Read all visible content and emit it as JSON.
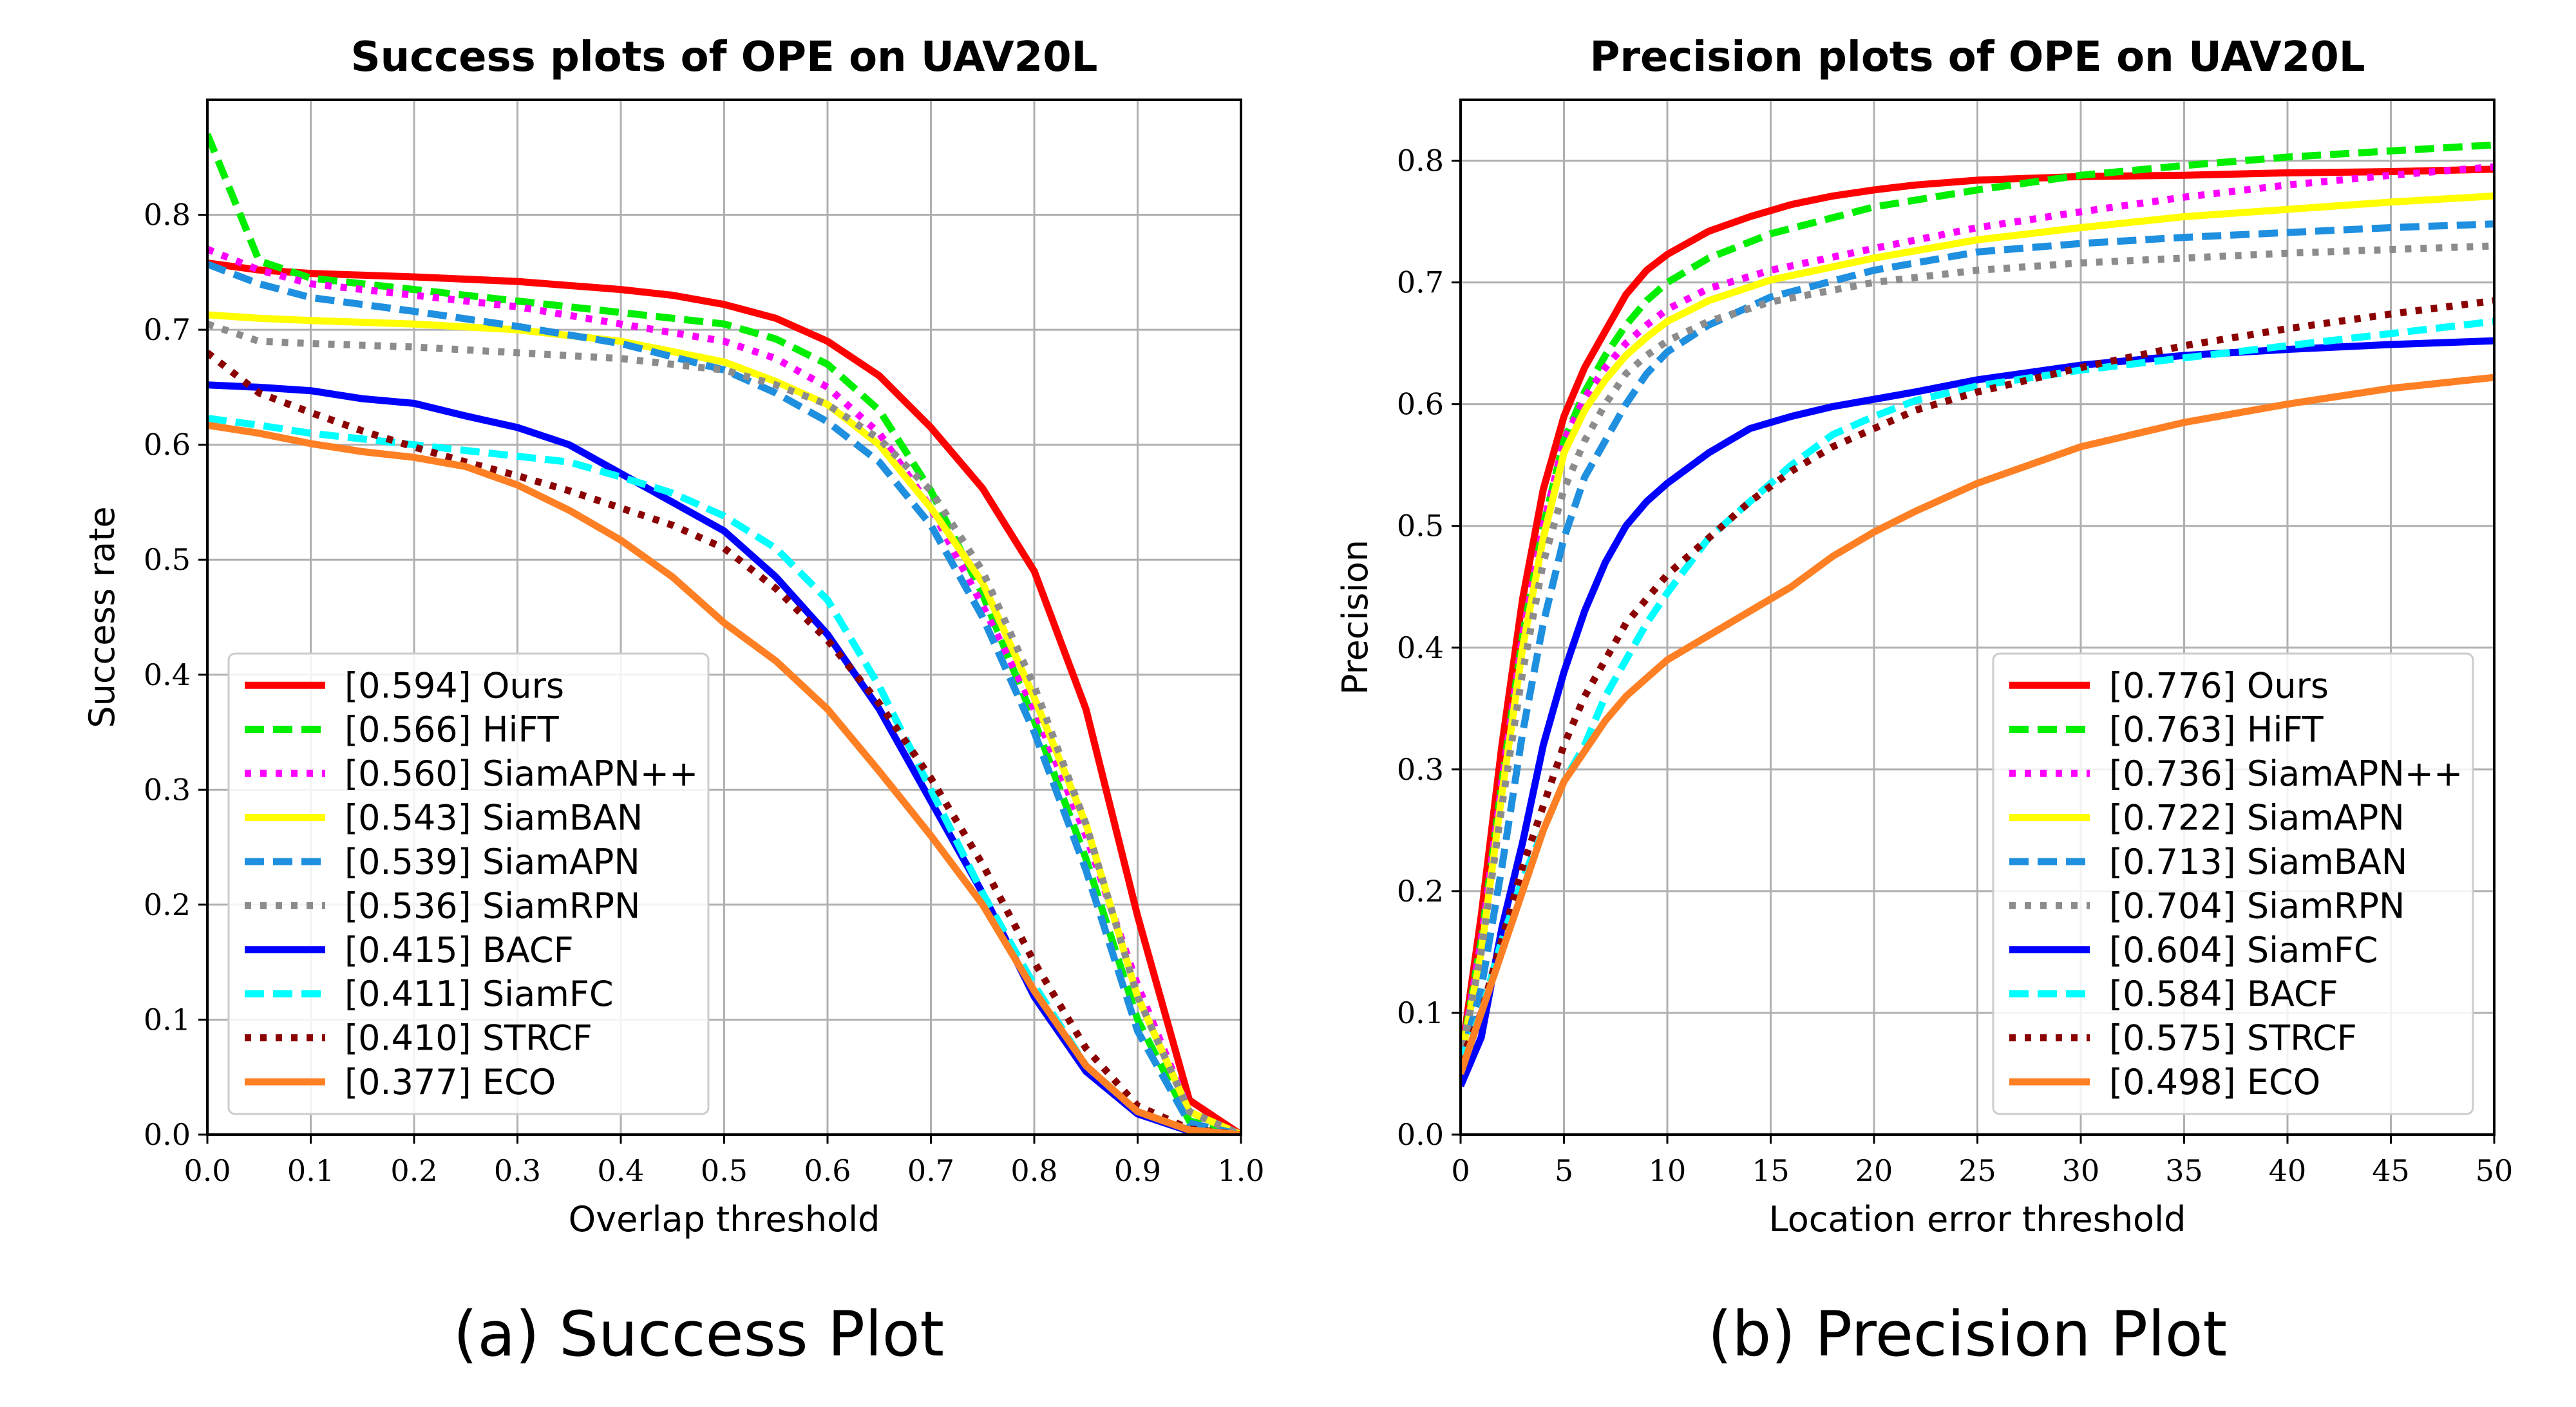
{
  "figure_captions": [
    "(a) Success Plot",
    "(b) Precision Plot"
  ],
  "chart_data": [
    {
      "type": "line",
      "title": "Success plots of OPE on UAV20L",
      "xlabel": "Overlap threshold",
      "ylabel": "Success rate",
      "xlim": [
        0,
        1
      ],
      "ylim": [
        0,
        0.9
      ],
      "xticks": [
        0.0,
        0.1,
        0.2,
        0.3,
        0.4,
        0.5,
        0.6,
        0.7,
        0.8,
        0.9,
        1.0
      ],
      "xtick_labels": [
        "0.0",
        "0.1",
        "0.2",
        "0.3",
        "0.4",
        "0.5",
        "0.6",
        "0.7",
        "0.8",
        "0.9",
        "1.0"
      ],
      "yticks": [
        0.0,
        0.1,
        0.2,
        0.3,
        0.4,
        0.5,
        0.6,
        0.7,
        0.8
      ],
      "ytick_labels": [
        "0.0",
        "0.1",
        "0.2",
        "0.3",
        "0.4",
        "0.5",
        "0.6",
        "0.7",
        "0.8"
      ],
      "grid": true,
      "legend_position": "lower-left",
      "series": [
        {
          "name": "[0.594] Ours",
          "color": "#ff0000",
          "dash": "solid",
          "x": [
            0,
            0.05,
            0.1,
            0.2,
            0.3,
            0.4,
            0.45,
            0.5,
            0.55,
            0.6,
            0.65,
            0.7,
            0.75,
            0.8,
            0.85,
            0.9,
            0.95,
            1.0
          ],
          "y": [
            0.758,
            0.752,
            0.749,
            0.746,
            0.742,
            0.735,
            0.73,
            0.722,
            0.71,
            0.69,
            0.66,
            0.615,
            0.562,
            0.49,
            0.37,
            0.19,
            0.03,
            0.0
          ]
        },
        {
          "name": "[0.566] HiFT",
          "color": "#00ee00",
          "dash": "dashed",
          "x": [
            0,
            0.05,
            0.1,
            0.2,
            0.3,
            0.4,
            0.5,
            0.55,
            0.6,
            0.65,
            0.7,
            0.75,
            0.8,
            0.85,
            0.9,
            0.95,
            1.0
          ],
          "y": [
            0.87,
            0.76,
            0.745,
            0.735,
            0.725,
            0.715,
            0.705,
            0.692,
            0.67,
            0.63,
            0.56,
            0.47,
            0.36,
            0.24,
            0.1,
            0.012,
            0.0
          ]
        },
        {
          "name": "[0.560] SiamAPN++",
          "color": "#ff00ff",
          "dash": "dotted",
          "x": [
            0,
            0.05,
            0.1,
            0.2,
            0.3,
            0.4,
            0.5,
            0.55,
            0.6,
            0.65,
            0.7,
            0.75,
            0.8,
            0.85,
            0.9,
            0.95,
            1.0
          ],
          "y": [
            0.77,
            0.752,
            0.74,
            0.73,
            0.72,
            0.705,
            0.69,
            0.675,
            0.65,
            0.61,
            0.545,
            0.46,
            0.37,
            0.26,
            0.13,
            0.02,
            0.0
          ]
        },
        {
          "name": "[0.543] SiamBAN",
          "color": "#ffff00",
          "dash": "solid",
          "x": [
            0,
            0.05,
            0.1,
            0.2,
            0.3,
            0.4,
            0.5,
            0.55,
            0.6,
            0.65,
            0.7,
            0.75,
            0.8,
            0.85,
            0.9,
            0.95,
            1.0
          ],
          "y": [
            0.713,
            0.71,
            0.708,
            0.705,
            0.7,
            0.69,
            0.672,
            0.655,
            0.635,
            0.6,
            0.545,
            0.48,
            0.38,
            0.27,
            0.12,
            0.02,
            0.0
          ]
        },
        {
          "name": "[0.539] SiamAPN",
          "color": "#1f8fdf",
          "dash": "dashed",
          "x": [
            0,
            0.05,
            0.1,
            0.2,
            0.3,
            0.4,
            0.5,
            0.55,
            0.6,
            0.65,
            0.7,
            0.75,
            0.8,
            0.85,
            0.9,
            0.95,
            1.0
          ],
          "y": [
            0.757,
            0.74,
            0.728,
            0.716,
            0.703,
            0.688,
            0.665,
            0.645,
            0.62,
            0.585,
            0.53,
            0.45,
            0.35,
            0.23,
            0.09,
            0.01,
            0.0
          ]
        },
        {
          "name": "[0.536] SiamRPN",
          "color": "#8c8c8c",
          "dash": "dotted",
          "x": [
            0,
            0.05,
            0.1,
            0.2,
            0.3,
            0.4,
            0.5,
            0.55,
            0.6,
            0.65,
            0.7,
            0.75,
            0.8,
            0.85,
            0.9,
            0.95,
            1.0
          ],
          "y": [
            0.705,
            0.69,
            0.688,
            0.685,
            0.68,
            0.675,
            0.665,
            0.652,
            0.635,
            0.605,
            0.56,
            0.49,
            0.39,
            0.27,
            0.12,
            0.02,
            0.0
          ]
        },
        {
          "name": "[0.415] BACF",
          "color": "#0000ff",
          "dash": "solid",
          "x": [
            0,
            0.05,
            0.1,
            0.15,
            0.2,
            0.25,
            0.3,
            0.35,
            0.4,
            0.45,
            0.5,
            0.55,
            0.6,
            0.65,
            0.7,
            0.75,
            0.8,
            0.85,
            0.9,
            0.95,
            1.0
          ],
          "y": [
            0.652,
            0.65,
            0.647,
            0.64,
            0.636,
            0.625,
            0.615,
            0.6,
            0.575,
            0.55,
            0.525,
            0.485,
            0.435,
            0.37,
            0.29,
            0.21,
            0.12,
            0.055,
            0.018,
            0.003,
            0.0
          ]
        },
        {
          "name": "[0.411] SiamFC",
          "color": "#00ffff",
          "dash": "dashed",
          "x": [
            0,
            0.05,
            0.1,
            0.15,
            0.2,
            0.25,
            0.3,
            0.35,
            0.4,
            0.45,
            0.5,
            0.55,
            0.6,
            0.65,
            0.7,
            0.75,
            0.8,
            0.85,
            0.9,
            0.95,
            1.0
          ],
          "y": [
            0.623,
            0.617,
            0.61,
            0.605,
            0.6,
            0.595,
            0.59,
            0.585,
            0.572,
            0.558,
            0.538,
            0.51,
            0.465,
            0.39,
            0.3,
            0.21,
            0.13,
            0.06,
            0.02,
            0.004,
            0.0
          ]
        },
        {
          "name": "[0.410] STRCF",
          "color": "#8b0000",
          "dash": "dotted",
          "x": [
            0,
            0.05,
            0.1,
            0.15,
            0.2,
            0.25,
            0.3,
            0.35,
            0.4,
            0.45,
            0.5,
            0.55,
            0.6,
            0.65,
            0.7,
            0.75,
            0.8,
            0.85,
            0.9,
            0.95,
            1.0
          ],
          "y": [
            0.68,
            0.645,
            0.628,
            0.612,
            0.598,
            0.585,
            0.573,
            0.56,
            0.545,
            0.53,
            0.51,
            0.475,
            0.43,
            0.375,
            0.31,
            0.235,
            0.15,
            0.075,
            0.025,
            0.005,
            0.0
          ]
        },
        {
          "name": "[0.377] ECO",
          "color": "#ff8024",
          "dash": "solid",
          "x": [
            0,
            0.05,
            0.1,
            0.15,
            0.2,
            0.25,
            0.3,
            0.35,
            0.4,
            0.45,
            0.5,
            0.55,
            0.6,
            0.65,
            0.7,
            0.75,
            0.8,
            0.85,
            0.9,
            0.95,
            1.0
          ],
          "y": [
            0.617,
            0.61,
            0.601,
            0.594,
            0.589,
            0.581,
            0.565,
            0.543,
            0.517,
            0.485,
            0.445,
            0.412,
            0.37,
            0.316,
            0.26,
            0.2,
            0.125,
            0.06,
            0.02,
            0.004,
            0.0
          ]
        }
      ]
    },
    {
      "type": "line",
      "title": "Precision plots of OPE on UAV20L",
      "xlabel": "Location error threshold",
      "ylabel": "Precision",
      "xlim": [
        0,
        50
      ],
      "ylim": [
        0,
        0.85
      ],
      "xticks": [
        0,
        5,
        10,
        15,
        20,
        25,
        30,
        35,
        40,
        45,
        50
      ],
      "xtick_labels": [
        "0",
        "5",
        "10",
        "15",
        "20",
        "25",
        "30",
        "35",
        "40",
        "45",
        "50"
      ],
      "yticks": [
        0.0,
        0.1,
        0.2,
        0.3,
        0.4,
        0.5,
        0.6,
        0.7,
        0.8
      ],
      "ytick_labels": [
        "0.0",
        "0.1",
        "0.2",
        "0.3",
        "0.4",
        "0.5",
        "0.6",
        "0.7",
        "0.8"
      ],
      "grid": true,
      "legend_position": "lower-right",
      "series": [
        {
          "name": "[0.776] Ours",
          "color": "#ff0000",
          "dash": "solid",
          "x": [
            0,
            1,
            2,
            3,
            4,
            5,
            6,
            7,
            8,
            9,
            10,
            12,
            14,
            16,
            18,
            20,
            22,
            25,
            30,
            35,
            40,
            45,
            50
          ],
          "y": [
            0.06,
            0.18,
            0.32,
            0.44,
            0.53,
            0.59,
            0.63,
            0.66,
            0.69,
            0.71,
            0.723,
            0.742,
            0.754,
            0.764,
            0.771,
            0.776,
            0.78,
            0.784,
            0.787,
            0.788,
            0.79,
            0.791,
            0.793
          ]
        },
        {
          "name": "[0.763] HiFT",
          "color": "#00ee00",
          "dash": "dashed",
          "x": [
            0,
            1,
            2,
            3,
            4,
            5,
            6,
            7,
            8,
            9,
            10,
            12,
            15,
            20,
            25,
            30,
            35,
            40,
            45,
            50
          ],
          "y": [
            0.06,
            0.16,
            0.29,
            0.41,
            0.5,
            0.57,
            0.61,
            0.64,
            0.665,
            0.685,
            0.7,
            0.72,
            0.74,
            0.762,
            0.776,
            0.788,
            0.796,
            0.803,
            0.808,
            0.813
          ]
        },
        {
          "name": "[0.736] SiamAPN++",
          "color": "#ff00ff",
          "dash": "dotted",
          "x": [
            0,
            1,
            2,
            3,
            4,
            5,
            6,
            7,
            8,
            9,
            10,
            12,
            15,
            20,
            25,
            30,
            35,
            40,
            45,
            50
          ],
          "y": [
            0.06,
            0.16,
            0.29,
            0.41,
            0.5,
            0.57,
            0.605,
            0.63,
            0.65,
            0.665,
            0.678,
            0.695,
            0.71,
            0.728,
            0.745,
            0.758,
            0.77,
            0.78,
            0.788,
            0.795
          ]
        },
        {
          "name": "[0.722] SiamAPN",
          "color": "#ffff00",
          "dash": "solid",
          "x": [
            0,
            1,
            2,
            3,
            4,
            5,
            6,
            7,
            8,
            9,
            10,
            12,
            15,
            20,
            25,
            30,
            35,
            40,
            45,
            50
          ],
          "y": [
            0.06,
            0.15,
            0.28,
            0.4,
            0.49,
            0.56,
            0.595,
            0.62,
            0.64,
            0.655,
            0.668,
            0.685,
            0.702,
            0.72,
            0.735,
            0.745,
            0.754,
            0.76,
            0.766,
            0.771
          ]
        },
        {
          "name": "[0.713] SiamBAN",
          "color": "#1f8fdf",
          "dash": "dashed",
          "x": [
            0,
            1,
            2,
            3,
            4,
            5,
            6,
            7,
            8,
            9,
            10,
            12,
            15,
            20,
            25,
            30,
            35,
            40,
            45,
            50
          ],
          "y": [
            0.06,
            0.12,
            0.22,
            0.33,
            0.42,
            0.49,
            0.54,
            0.57,
            0.6,
            0.625,
            0.643,
            0.665,
            0.688,
            0.71,
            0.725,
            0.732,
            0.737,
            0.741,
            0.745,
            0.748
          ]
        },
        {
          "name": "[0.704] SiamRPN",
          "color": "#8c8c8c",
          "dash": "dotted",
          "x": [
            0,
            1,
            2,
            3,
            4,
            5,
            6,
            7,
            8,
            9,
            10,
            12,
            15,
            20,
            25,
            30,
            35,
            40,
            45,
            50
          ],
          "y": [
            0.06,
            0.15,
            0.27,
            0.38,
            0.47,
            0.53,
            0.57,
            0.6,
            0.625,
            0.64,
            0.652,
            0.668,
            0.684,
            0.7,
            0.71,
            0.716,
            0.72,
            0.724,
            0.727,
            0.73
          ]
        },
        {
          "name": "[0.604] SiamFC",
          "color": "#0000ff",
          "dash": "solid",
          "x": [
            0,
            1,
            2,
            3,
            4,
            5,
            6,
            7,
            8,
            9,
            10,
            12,
            14,
            16,
            18,
            20,
            22,
            25,
            30,
            35,
            40,
            45,
            50
          ],
          "y": [
            0.04,
            0.08,
            0.17,
            0.24,
            0.32,
            0.38,
            0.43,
            0.47,
            0.5,
            0.52,
            0.535,
            0.56,
            0.58,
            0.59,
            0.598,
            0.604,
            0.61,
            0.62,
            0.632,
            0.64,
            0.645,
            0.649,
            0.652
          ]
        },
        {
          "name": "[0.584] BACF",
          "color": "#00ffff",
          "dash": "dashed",
          "x": [
            0,
            1,
            2,
            3,
            4,
            5,
            6,
            7,
            8,
            9,
            10,
            12,
            14,
            16,
            18,
            20,
            22,
            25,
            30,
            35,
            40,
            45,
            50
          ],
          "y": [
            0.06,
            0.1,
            0.16,
            0.21,
            0.25,
            0.29,
            0.32,
            0.36,
            0.39,
            0.42,
            0.445,
            0.49,
            0.52,
            0.55,
            0.575,
            0.59,
            0.603,
            0.615,
            0.628,
            0.638,
            0.648,
            0.658,
            0.668
          ]
        },
        {
          "name": "[0.575] STRCF",
          "color": "#8b0000",
          "dash": "dotted",
          "x": [
            0,
            1,
            2,
            3,
            4,
            5,
            6,
            7,
            8,
            9,
            10,
            12,
            14,
            16,
            18,
            20,
            22,
            25,
            30,
            35,
            40,
            45,
            50
          ],
          "y": [
            0.06,
            0.1,
            0.16,
            0.22,
            0.27,
            0.32,
            0.36,
            0.39,
            0.42,
            0.44,
            0.46,
            0.49,
            0.52,
            0.545,
            0.565,
            0.58,
            0.595,
            0.61,
            0.63,
            0.648,
            0.662,
            0.674,
            0.685
          ]
        },
        {
          "name": "[0.498] ECO",
          "color": "#ff8024",
          "dash": "solid",
          "x": [
            0,
            1,
            2,
            3,
            4,
            5,
            6,
            7,
            8,
            9,
            10,
            12,
            14,
            16,
            18,
            20,
            22,
            25,
            30,
            35,
            40,
            45,
            50
          ],
          "y": [
            0.05,
            0.1,
            0.15,
            0.2,
            0.25,
            0.29,
            0.315,
            0.34,
            0.36,
            0.375,
            0.39,
            0.41,
            0.43,
            0.45,
            0.475,
            0.495,
            0.512,
            0.535,
            0.565,
            0.585,
            0.6,
            0.613,
            0.622
          ]
        }
      ]
    }
  ]
}
